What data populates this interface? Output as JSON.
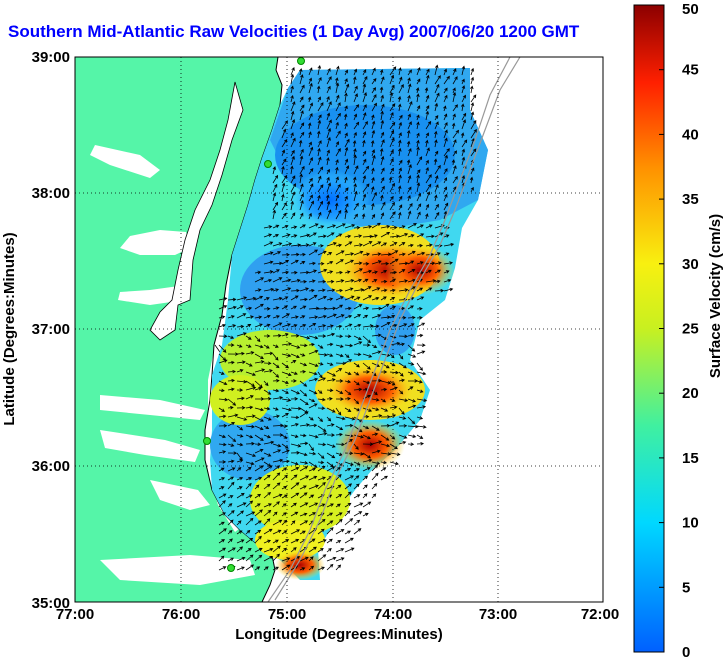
{
  "title": "Southern Mid-Atlantic Raw Velocities (1 Day Avg) 2007/06/20 1200 GMT",
  "map": {
    "xlabel": "Longitude (Degrees:Minutes)",
    "ylabel": "Latitude (Degrees:Minutes)",
    "x_ticks": [
      "77:00",
      "76:00",
      "75:00",
      "74:00",
      "73:00",
      "72:00"
    ],
    "y_ticks": [
      "39:00",
      "38:00",
      "37:00",
      "36:00",
      "35:00"
    ],
    "land_color": "#55f5a8",
    "water_color": "#ffffff"
  },
  "colorbar": {
    "label": "Surface Velocity (cm/s)",
    "units": "cm/s",
    "min": 0,
    "max": 50,
    "ticks": [
      "50",
      "45",
      "40",
      "35",
      "30",
      "25",
      "20",
      "15",
      "10",
      "5",
      "0"
    ]
  },
  "markers": {
    "station_icon": "green-circle-icon",
    "station_color": "#33dd33"
  }
}
